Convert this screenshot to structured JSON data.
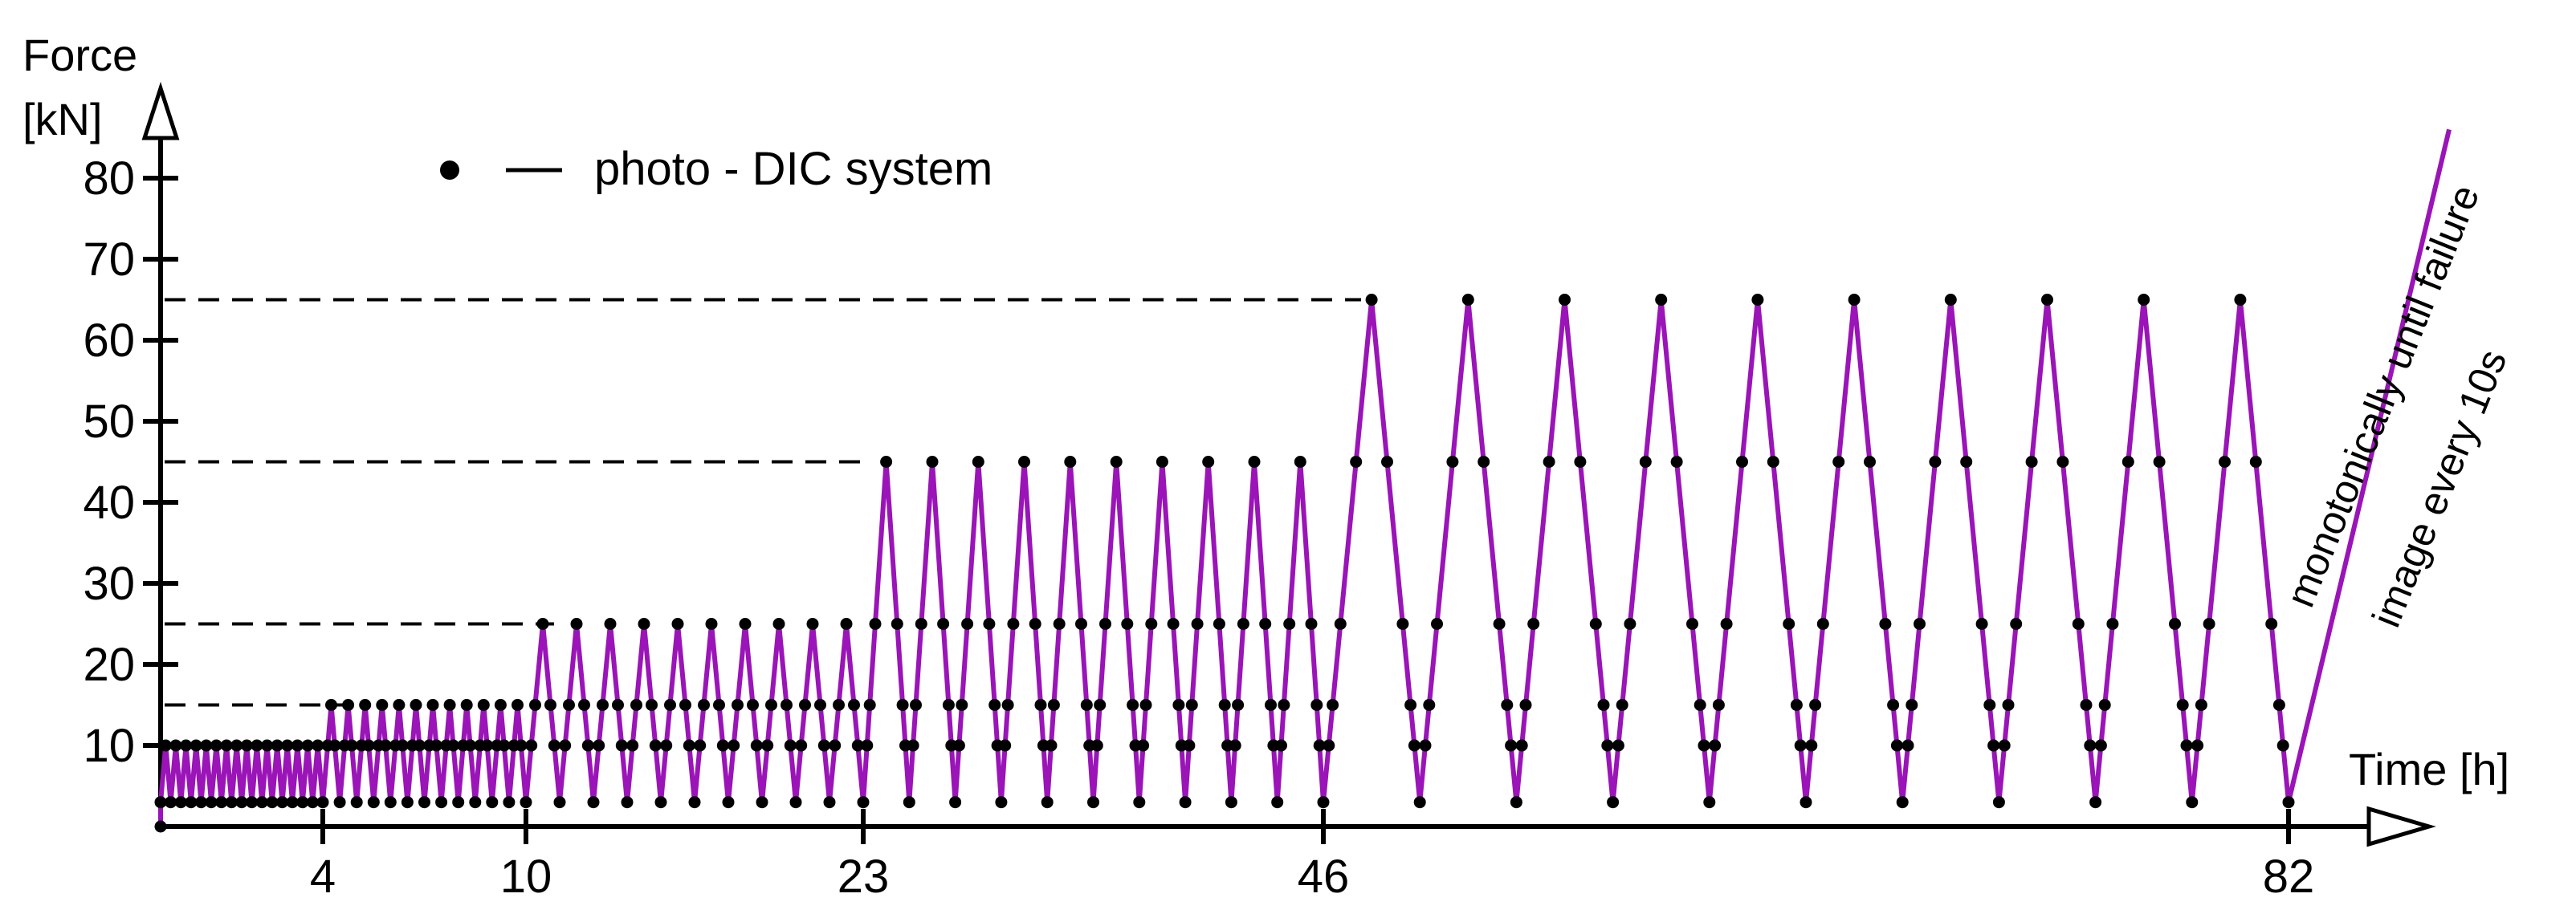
{
  "chart_data": {
    "type": "line",
    "ylabel": "Force",
    "yunit": "[kN]",
    "xlabel": "Time [h]",
    "x_ticks": [
      4,
      10,
      23,
      46,
      82
    ],
    "y_ticks": [
      10,
      20,
      30,
      40,
      50,
      60,
      70,
      80
    ],
    "legend": {
      "label": "photo - DIC system",
      "placement": "top-left"
    },
    "annotations": [
      "monotonically until failure",
      "image every 10s"
    ],
    "reference_levels": [
      15,
      25,
      45,
      65
    ],
    "stages": [
      {
        "amplitude_max": 10,
        "amplitude_min": 3,
        "cycles": 16,
        "sample_levels": [
          10
        ]
      },
      {
        "amplitude_max": 15,
        "amplitude_min": 3,
        "cycles": 12,
        "sample_levels": [
          10,
          15
        ]
      },
      {
        "amplitude_max": 25,
        "amplitude_min": 3,
        "cycles": 10,
        "sample_levels": [
          10,
          15,
          25
        ]
      },
      {
        "amplitude_max": 45,
        "amplitude_min": 3,
        "cycles": 10,
        "sample_levels": [
          10,
          15,
          25,
          45
        ]
      },
      {
        "amplitude_max": 65,
        "amplitude_min": 3,
        "cycles": 10,
        "sample_levels": [
          10,
          15,
          25,
          45,
          65
        ]
      }
    ],
    "final_ramp": {
      "from": 3,
      "to": 86,
      "label": "monotonically until failure"
    },
    "colors": {
      "series": "#9a14b8",
      "markers": "#000000",
      "axes": "#000000"
    },
    "grid": false
  }
}
